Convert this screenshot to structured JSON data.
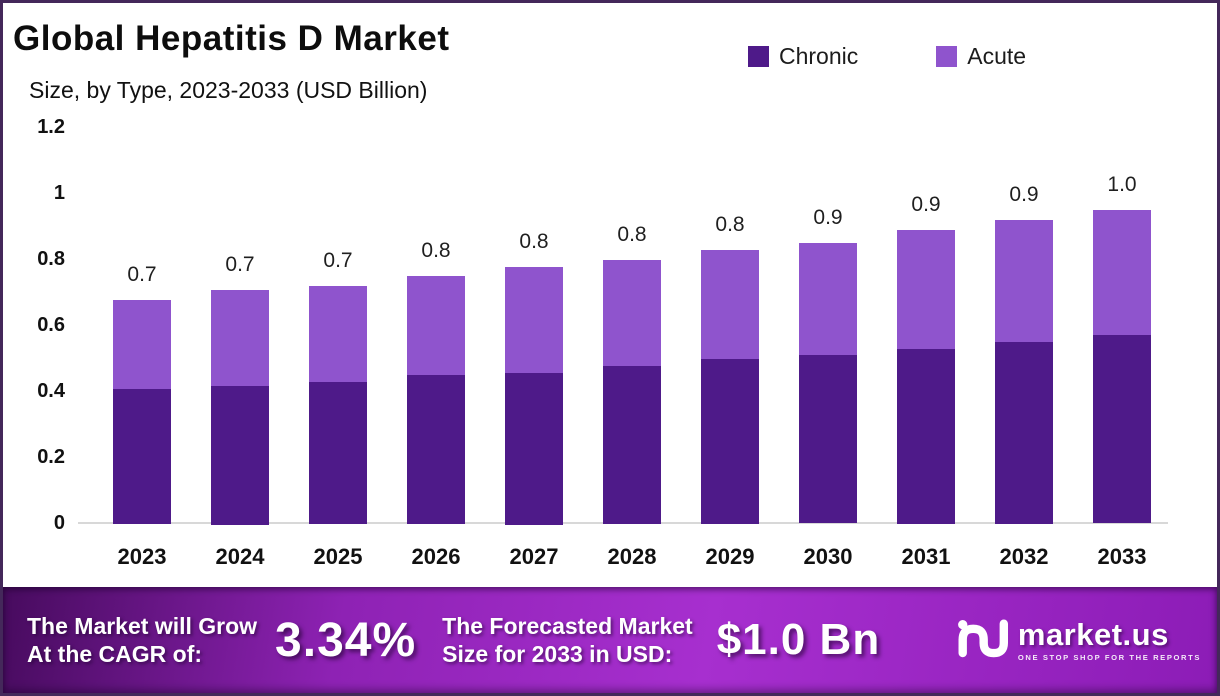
{
  "page": {
    "title": "Global Hepatitis D Market",
    "subtitle": "Size, by Type, 2023-2033 (USD Billion)"
  },
  "colors": {
    "chronic": "#4e1a89",
    "acute": "#8f54cd",
    "frame_border": "#44285a",
    "axis_line": "#d8d8d8",
    "banner_gradient": [
      "#470b5e",
      "#a72fcf",
      "#8c1cb6"
    ]
  },
  "legend": {
    "items": [
      {
        "label": "Chronic",
        "color_key": "chronic"
      },
      {
        "label": "Acute",
        "color_key": "acute"
      }
    ]
  },
  "chart_data": {
    "type": "bar",
    "stacked": true,
    "title": "Global Hepatitis D Market Size, by Type, 2023-2033 (USD Billion)",
    "xlabel": "",
    "ylabel": "USD Billion",
    "categories": [
      "2023",
      "2024",
      "2025",
      "2026",
      "2027",
      "2028",
      "2029",
      "2030",
      "2031",
      "2032",
      "2033"
    ],
    "series": [
      {
        "name": "Chronic",
        "values": [
          0.41,
          0.42,
          0.43,
          0.45,
          0.46,
          0.48,
          0.5,
          0.51,
          0.53,
          0.55,
          0.57
        ]
      },
      {
        "name": "Acute",
        "values": [
          0.27,
          0.29,
          0.29,
          0.3,
          0.32,
          0.32,
          0.33,
          0.34,
          0.36,
          0.37,
          0.38
        ]
      }
    ],
    "totals": [
      0.68,
      0.71,
      0.72,
      0.75,
      0.78,
      0.8,
      0.83,
      0.85,
      0.89,
      0.92,
      0.95
    ],
    "total_labels": [
      "0.7",
      "0.7",
      "0.7",
      "0.8",
      "0.8",
      "0.8",
      "0.8",
      "0.9",
      "0.9",
      "0.9",
      "1.0"
    ],
    "y_ticks": [
      "1.2",
      "1",
      "0.8",
      "0.6",
      "0.4",
      "0.2",
      "0"
    ],
    "y_tick_values": [
      1.2,
      1,
      0.8,
      0.6,
      0.4,
      0.2,
      0
    ],
    "ylim": [
      0,
      1.2
    ],
    "grid": false,
    "legend_position": "top-right"
  },
  "banner": {
    "cagr_label_line1": "The Market will Grow",
    "cagr_label_line2": "At the CAGR of:",
    "cagr_value": "3.34%",
    "forecast_label_line1": "The Forecasted Market",
    "forecast_label_line2": "Size for 2033 in USD:",
    "forecast_value": "$1.0 Bn"
  },
  "logo": {
    "name": "market.us",
    "tagline": "ONE STOP SHOP FOR THE REPORTS"
  }
}
